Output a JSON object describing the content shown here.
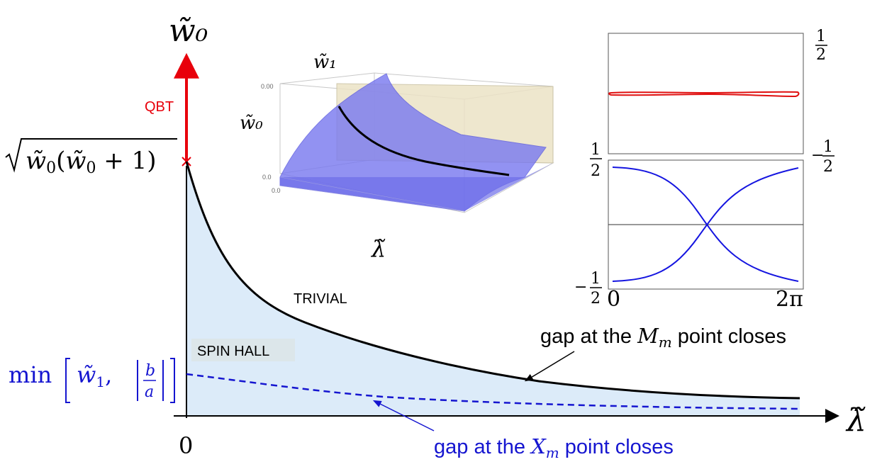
{
  "main_axes": {
    "y_label": "w̃₀",
    "x_label": "λ̃",
    "origin_label": "0",
    "y_tick_upper": "√(w̃₀(w̃₀ + 1))",
    "y_tick_lower": "min[ w̃₁ , |b/a| ]"
  },
  "regions": {
    "qbt": "QBT",
    "trivial": "TRIVIAL",
    "spin_hall": "SPIN HALL"
  },
  "annotations": {
    "m_point": "gap at the M_m point closes",
    "m_point_prefix": "gap at the",
    "m_point_symbol": "M",
    "m_point_sub": "m",
    "m_point_suffix": "point closes",
    "x_point": "gap at the X_m point closes",
    "x_point_prefix": "gap at the",
    "x_point_symbol": "X",
    "x_point_sub": "m",
    "x_point_suffix": "point closes"
  },
  "inset_3d": {
    "label_w1": "w̃₁",
    "label_w0": "w̃₀",
    "label_lambda": "λ̃",
    "tick_top": "0.00",
    "tick_mid": "0.0",
    "tick_bottom": "0.0"
  },
  "inset_bands": {
    "top_right_upper": "1/2",
    "top_right_lower": "− 1/2",
    "bottom_left_upper": "1/2",
    "bottom_left_lower": "− 1/2",
    "x_tick_start": "0",
    "x_tick_end": "2π"
  },
  "colors": {
    "qbt": "#e8000b",
    "phase_boundary": "#000000",
    "x_point_line": "#1515d0",
    "fill": "#dcebf9",
    "band": "#1515e0",
    "wilson_loop": "#e01010",
    "surface": "#7878f0"
  }
}
